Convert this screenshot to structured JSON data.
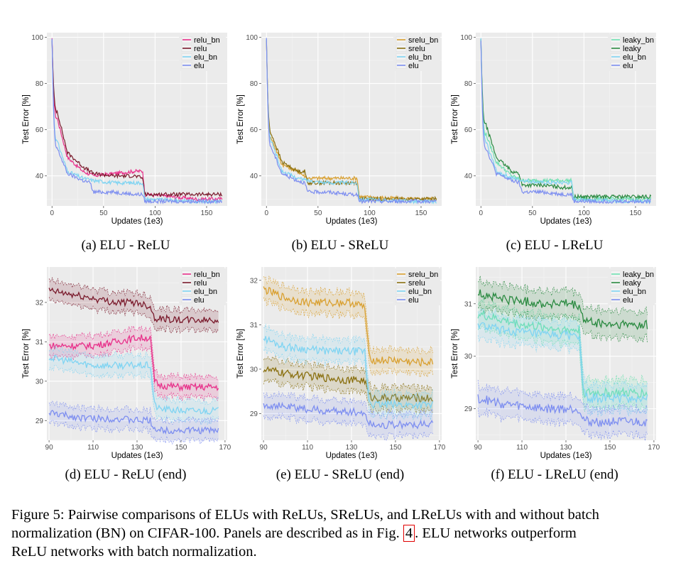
{
  "panels": [
    {
      "id": "a",
      "caption": "(a) ELU - ReLU",
      "xlabel": "Updates (1e3)",
      "ylabel": "Test Error [%]",
      "xticks": [
        0,
        50,
        100,
        150
      ],
      "yticks": [
        40,
        60,
        80,
        100
      ],
      "xlim": [
        -5,
        170
      ],
      "ylim": [
        27,
        102
      ],
      "legend": [
        "relu_bn",
        "relu",
        "elu_bn",
        "elu"
      ],
      "colors": [
        "#e8308a",
        "#7a1a2c",
        "#7fd4f2",
        "#7d8ef0"
      ]
    },
    {
      "id": "b",
      "caption": "(b) ELU - SReLU",
      "xlabel": "Updates (1e3)",
      "ylabel": "Test Error [%]",
      "xticks": [
        0,
        50,
        100,
        150
      ],
      "yticks": [
        40,
        60,
        80,
        100
      ],
      "xlim": [
        -5,
        170
      ],
      "ylim": [
        27,
        102
      ],
      "legend": [
        "srelu_bn",
        "srelu",
        "elu_bn",
        "elu"
      ],
      "colors": [
        "#d9a030",
        "#8a7010",
        "#7fd4f2",
        "#7d8ef0"
      ]
    },
    {
      "id": "c",
      "caption": "(c) ELU - LReLU",
      "xlabel": "Updates (1e3)",
      "ylabel": "Test Error [%]",
      "xticks": [
        0,
        50,
        100,
        150
      ],
      "yticks": [
        40,
        60,
        80,
        100
      ],
      "xlim": [
        -5,
        170
      ],
      "ylim": [
        27,
        102
      ],
      "legend": [
        "leaky_bn",
        "leaky",
        "elu_bn",
        "elu"
      ],
      "colors": [
        "#6de0b0",
        "#2a8a40",
        "#7fd4f2",
        "#7d8ef0"
      ]
    },
    {
      "id": "d",
      "caption": "(d) ELU - ReLU (end)",
      "xlabel": "Updates (1e3)",
      "ylabel": "Test Error [%]",
      "xticks": [
        90,
        110,
        130,
        150,
        170
      ],
      "yticks": [
        29,
        30,
        31,
        32
      ],
      "xlim": [
        89,
        171
      ],
      "ylim": [
        28.5,
        32.9
      ],
      "legend": [
        "relu_bn",
        "relu",
        "elu_bn",
        "elu"
      ],
      "colors": [
        "#e8308a",
        "#7a1a2c",
        "#7fd4f2",
        "#7d8ef0"
      ]
    },
    {
      "id": "e",
      "caption": "(e) ELU - SReLU (end)",
      "xlabel": "Updates (1e3)",
      "ylabel": "Test Error [%]",
      "xticks": [
        90,
        110,
        130,
        150,
        170
      ],
      "yticks": [
        29,
        30,
        31,
        32
      ],
      "xlim": [
        89,
        171
      ],
      "ylim": [
        28.4,
        32.3
      ],
      "legend": [
        "srelu_bn",
        "srelu",
        "elu_bn",
        "elu"
      ],
      "colors": [
        "#d9a030",
        "#8a7010",
        "#7fd4f2",
        "#7d8ef0"
      ]
    },
    {
      "id": "f",
      "caption": "(f) ELU - LReLU (end)",
      "xlabel": "Updates (1e3)",
      "ylabel": "Test Error [%]",
      "xticks": [
        90,
        110,
        130,
        150,
        170
      ],
      "yticks": [
        29,
        30,
        31
      ],
      "xlim": [
        89,
        171
      ],
      "ylim": [
        28.4,
        31.7
      ],
      "legend": [
        "leaky_bn",
        "leaky",
        "elu_bn",
        "elu"
      ],
      "colors": [
        "#6de0b0",
        "#2a8a40",
        "#7fd4f2",
        "#7d8ef0"
      ]
    }
  ],
  "chart_data": [
    {
      "type": "line",
      "panel": "a",
      "title": "",
      "xlabel": "Updates (1e3)",
      "ylabel": "Test Error [%]",
      "series": [
        {
          "name": "relu_bn",
          "x": [
            0,
            5,
            15,
            30,
            40,
            60,
            80,
            88,
            90,
            140,
            165
          ],
          "values": [
            99,
            65,
            48,
            42,
            40,
            41,
            42,
            42,
            32,
            30,
            30
          ]
        },
        {
          "name": "relu",
          "x": [
            0,
            5,
            15,
            30,
            40,
            60,
            80,
            88,
            90,
            140,
            165
          ],
          "values": [
            99,
            68,
            50,
            44,
            41,
            40,
            40,
            39,
            32,
            32,
            32
          ]
        },
        {
          "name": "elu_bn",
          "x": [
            0,
            5,
            15,
            30,
            40,
            60,
            80,
            88,
            90,
            140,
            165
          ],
          "values": [
            99,
            55,
            42,
            39,
            38,
            37,
            37,
            37,
            30,
            29,
            29
          ]
        },
        {
          "name": "elu",
          "x": [
            0,
            5,
            15,
            30,
            37,
            40,
            60,
            80,
            88,
            90,
            140,
            165
          ],
          "values": [
            99,
            52,
            41,
            38,
            37,
            33,
            33,
            32,
            32,
            29,
            29,
            29
          ]
        }
      ]
    },
    {
      "type": "line",
      "panel": "b",
      "title": "",
      "xlabel": "Updates (1e3)",
      "ylabel": "Test Error [%]",
      "series": [
        {
          "name": "srelu_bn",
          "x": [
            0,
            5,
            15,
            30,
            40,
            60,
            80,
            88,
            90,
            140,
            165
          ],
          "values": [
            99,
            56,
            45,
            42,
            39,
            39,
            39,
            39,
            31,
            30,
            30
          ]
        },
        {
          "name": "srelu",
          "x": [
            0,
            5,
            15,
            30,
            37,
            40,
            60,
            80,
            88,
            90,
            140,
            165
          ],
          "values": [
            99,
            58,
            46,
            42,
            42,
            37,
            37,
            37,
            37,
            30,
            30,
            30
          ]
        },
        {
          "name": "elu_bn",
          "x": [
            0,
            5,
            15,
            30,
            40,
            60,
            80,
            88,
            90,
            140,
            165
          ],
          "values": [
            99,
            55,
            42,
            39,
            38,
            37,
            37,
            37,
            30,
            29,
            29
          ]
        },
        {
          "name": "elu",
          "x": [
            0,
            5,
            15,
            30,
            37,
            40,
            60,
            80,
            88,
            90,
            140,
            165
          ],
          "values": [
            99,
            52,
            41,
            38,
            37,
            33,
            33,
            32,
            32,
            29,
            29,
            29
          ]
        }
      ]
    },
    {
      "type": "line",
      "panel": "c",
      "title": "",
      "xlabel": "Updates (1e3)",
      "ylabel": "Test Error [%]",
      "series": [
        {
          "name": "leaky_bn",
          "x": [
            0,
            5,
            15,
            30,
            40,
            60,
            80,
            88,
            90,
            140,
            165
          ],
          "values": [
            99,
            58,
            46,
            40,
            38,
            38,
            38,
            38,
            30,
            30,
            30
          ]
        },
        {
          "name": "leaky",
          "x": [
            0,
            5,
            15,
            30,
            37,
            40,
            60,
            80,
            88,
            90,
            140,
            165
          ],
          "values": [
            99,
            62,
            48,
            42,
            41,
            36,
            36,
            35,
            35,
            31,
            31,
            31
          ]
        },
        {
          "name": "elu_bn",
          "x": [
            0,
            5,
            15,
            30,
            40,
            60,
            80,
            88,
            90,
            140,
            165
          ],
          "values": [
            99,
            55,
            42,
            39,
            38,
            37,
            37,
            37,
            30,
            29,
            29
          ]
        },
        {
          "name": "elu",
          "x": [
            0,
            5,
            15,
            30,
            37,
            40,
            60,
            80,
            88,
            90,
            140,
            165
          ],
          "values": [
            99,
            52,
            41,
            38,
            37,
            33,
            33,
            32,
            32,
            29,
            29,
            29
          ]
        }
      ]
    },
    {
      "type": "line",
      "panel": "d",
      "title": "",
      "xlabel": "Updates (1e3)",
      "ylabel": "Test Error [%]",
      "series": [
        {
          "name": "relu_bn",
          "x": [
            90,
            100,
            110,
            120,
            130,
            136,
            138,
            140,
            150,
            160,
            167
          ],
          "values": [
            30.9,
            30.9,
            30.9,
            31.0,
            31.1,
            31.1,
            30.0,
            29.9,
            29.85,
            29.85,
            29.85
          ]
        },
        {
          "name": "relu",
          "x": [
            90,
            100,
            110,
            120,
            130,
            136,
            138,
            140,
            150,
            160,
            167
          ],
          "values": [
            32.3,
            32.2,
            32.1,
            32.0,
            32.0,
            31.9,
            31.6,
            31.6,
            31.55,
            31.55,
            31.55
          ]
        },
        {
          "name": "elu_bn",
          "x": [
            90,
            100,
            110,
            120,
            130,
            136,
            138,
            140,
            150,
            160,
            167
          ],
          "values": [
            30.6,
            30.5,
            30.4,
            30.4,
            30.4,
            30.4,
            29.4,
            29.3,
            29.25,
            29.25,
            29.25
          ]
        },
        {
          "name": "elu",
          "x": [
            90,
            100,
            110,
            120,
            130,
            136,
            138,
            140,
            150,
            160,
            167
          ],
          "values": [
            29.2,
            29.1,
            29.05,
            29.05,
            29.0,
            29.0,
            28.8,
            28.75,
            28.75,
            28.75,
            28.75
          ]
        }
      ]
    },
    {
      "type": "line",
      "panel": "e",
      "title": "",
      "xlabel": "Updates (1e3)",
      "ylabel": "Test Error [%]",
      "series": [
        {
          "name": "srelu_bn",
          "x": [
            90,
            100,
            110,
            120,
            130,
            136,
            138,
            140,
            150,
            160,
            167
          ],
          "values": [
            31.8,
            31.6,
            31.5,
            31.5,
            31.5,
            31.4,
            30.3,
            30.2,
            30.2,
            30.15,
            30.15
          ]
        },
        {
          "name": "srelu",
          "x": [
            90,
            100,
            110,
            120,
            130,
            136,
            138,
            140,
            150,
            160,
            167
          ],
          "values": [
            30.0,
            29.9,
            29.85,
            29.8,
            29.75,
            29.75,
            29.4,
            29.35,
            29.35,
            29.35,
            29.35
          ]
        },
        {
          "name": "elu_bn",
          "x": [
            90,
            100,
            110,
            120,
            130,
            136,
            138,
            140,
            150,
            160,
            167
          ],
          "values": [
            30.7,
            30.5,
            30.45,
            30.4,
            30.4,
            30.4,
            29.3,
            29.2,
            29.2,
            29.2,
            29.2
          ]
        },
        {
          "name": "elu",
          "x": [
            90,
            100,
            110,
            120,
            130,
            136,
            138,
            140,
            150,
            160,
            167
          ],
          "values": [
            29.2,
            29.15,
            29.1,
            29.05,
            29.05,
            29.0,
            28.8,
            28.75,
            28.75,
            28.75,
            28.75
          ]
        }
      ]
    },
    {
      "type": "line",
      "panel": "f",
      "title": "",
      "xlabel": "Updates (1e3)",
      "ylabel": "Test Error [%]",
      "series": [
        {
          "name": "leaky_bn",
          "x": [
            90,
            100,
            110,
            120,
            130,
            136,
            138,
            140,
            150,
            160,
            167
          ],
          "values": [
            30.8,
            30.7,
            30.6,
            30.55,
            30.5,
            30.5,
            29.3,
            29.3,
            29.3,
            29.3,
            29.3
          ]
        },
        {
          "name": "leaky",
          "x": [
            90,
            100,
            110,
            120,
            130,
            136,
            138,
            140,
            150,
            160,
            167
          ],
          "values": [
            31.2,
            31.1,
            31.05,
            31.0,
            31.0,
            30.95,
            30.7,
            30.65,
            30.6,
            30.6,
            30.6
          ]
        },
        {
          "name": "elu_bn",
          "x": [
            90,
            100,
            110,
            120,
            130,
            136,
            138,
            140,
            150,
            160,
            167
          ],
          "values": [
            30.6,
            30.5,
            30.45,
            30.4,
            30.4,
            30.4,
            29.3,
            29.2,
            29.2,
            29.2,
            29.2
          ]
        },
        {
          "name": "elu",
          "x": [
            90,
            100,
            110,
            120,
            130,
            136,
            138,
            140,
            150,
            160,
            167
          ],
          "values": [
            29.2,
            29.1,
            29.05,
            29.0,
            29.0,
            29.0,
            28.8,
            28.75,
            28.75,
            28.75,
            28.75
          ]
        }
      ]
    }
  ],
  "figure_caption": {
    "line1": "Figure 5: Pairwise comparisons of ELUs with ReLUs, SReLUs, and LReLUs with and without batch",
    "line2_a": "normalization (BN) on CIFAR-100.  Panels are described as in Fig.",
    "line2_ref": "4",
    "line2_b": ".  ELU networks outperform",
    "line3": "ReLU networks with batch normalization."
  }
}
